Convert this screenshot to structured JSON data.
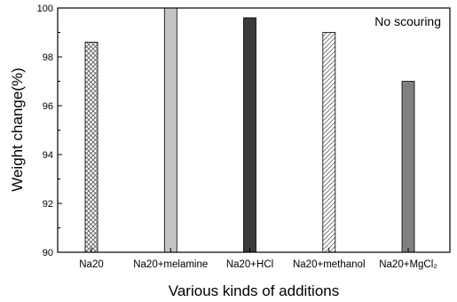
{
  "chart_data": {
    "type": "bar",
    "categories": [
      "Na20",
      "Na20+melamine",
      "Na20+HCl",
      "Na20+methanol",
      "Na20+MgCl₂"
    ],
    "values": [
      98.6,
      100.0,
      99.6,
      99.0,
      97.0
    ],
    "title": "",
    "xlabel": "Various kinds of additions",
    "ylabel": "Weight change(%)",
    "ylim": [
      90,
      100
    ],
    "yticks": [
      90,
      92,
      94,
      96,
      98,
      100
    ],
    "annotation": "No scouring",
    "grid": false,
    "legend": "none",
    "bar_styles": [
      {
        "fill": "crosshatch",
        "color": "#555555"
      },
      {
        "fill": "solid",
        "color": "#c4c4c4"
      },
      {
        "fill": "solid",
        "color": "#3a3a3a"
      },
      {
        "fill": "diagonal-hatch",
        "color": "#666666"
      },
      {
        "fill": "solid",
        "color": "#808080"
      }
    ]
  }
}
